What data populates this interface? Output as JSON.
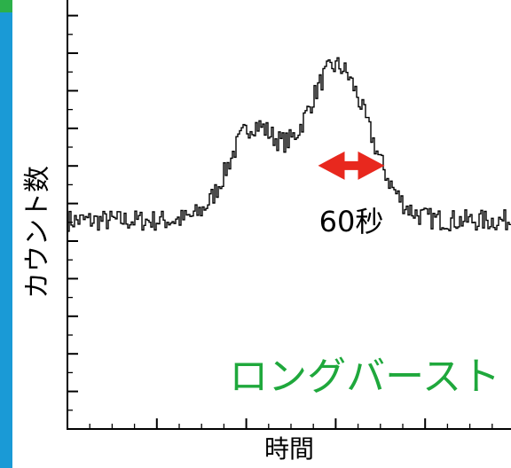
{
  "colors": {
    "accent_bar": "#1a9ad6",
    "accent_corner": "#2cb04a",
    "trace": "#000000",
    "arrow": "#e8281e",
    "burst_label": "#1fa83c"
  },
  "chart_data": {
    "type": "line",
    "title": "",
    "xlabel": "時間",
    "ylabel": "カウント数",
    "xlim": [
      0,
      1
    ],
    "ylim": [
      0,
      1
    ],
    "grid": false,
    "legend": "none",
    "y_ticks_labeled": false,
    "x_ticks_labeled": false,
    "series": [
      {
        "name": "",
        "style": "step",
        "baseline_level": 0.486,
        "components": [
          {
            "peak_x": 0.415,
            "height": 0.21,
            "width": 0.055
          },
          {
            "peak_x": 0.605,
            "height": 0.36,
            "width": 0.072
          }
        ],
        "x_range": [
          0,
          1
        ],
        "samples": 250
      }
    ],
    "annotations": [
      {
        "type": "double-arrow",
        "x_start": 0.565,
        "x_end": 0.715,
        "y": 0.614,
        "label": "60秒"
      },
      {
        "type": "text",
        "text": "ロングバースト",
        "x": 0.98,
        "y": 0.1,
        "anchor": "end"
      }
    ]
  }
}
